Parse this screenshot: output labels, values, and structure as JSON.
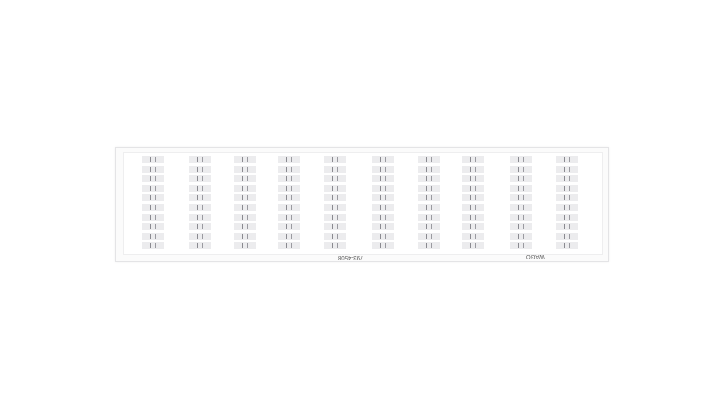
{
  "product": {
    "code": "793-4508",
    "brand": "WAGO",
    "columns": 10,
    "rows": 10
  },
  "colors": {
    "card": "#fbfbfb",
    "marker": "#ececee",
    "print": "#8a8a90"
  }
}
